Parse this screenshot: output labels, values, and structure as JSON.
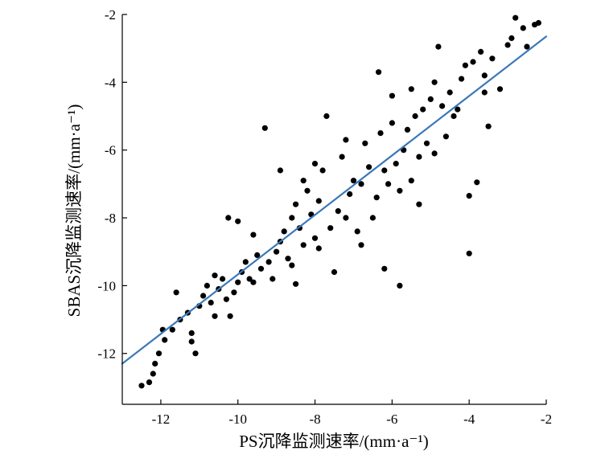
{
  "chart_data": {
    "type": "scatter",
    "xlabel": "PS沉降监测速率/(mm·a⁻¹)",
    "ylabel": "SBAS沉降监测速率/(mm·a⁻¹)",
    "xlim": [
      -13,
      -2
    ],
    "ylim": [
      -13.5,
      -2
    ],
    "xticks": [
      -12,
      -10,
      -8,
      -6,
      -4,
      -2
    ],
    "yticks": [
      -2,
      -4,
      -6,
      -8,
      -10,
      -12
    ],
    "xtick_labels": [
      "-12",
      "-10",
      "-8",
      "-6",
      "-4",
      "-2"
    ],
    "ytick_labels": [
      "-2",
      "-4",
      "-6",
      "-8",
      "-10",
      "-12"
    ],
    "grid": false,
    "legend": "none",
    "colors": {
      "points": "#000000",
      "fit_line": "#3a78b8"
    },
    "fit_line": {
      "x": [
        -13,
        -2
      ],
      "y": [
        -12.3,
        -2.65
      ]
    },
    "series": [
      {
        "points": [
          [
            -12.5,
            -12.95
          ],
          [
            -12.3,
            -12.85
          ],
          [
            -12.2,
            -12.6
          ],
          [
            -12.15,
            -12.3
          ],
          [
            -12.05,
            -12.0
          ],
          [
            -11.9,
            -11.6
          ],
          [
            -11.95,
            -11.3
          ],
          [
            -11.7,
            -11.3
          ],
          [
            -11.5,
            -11.0
          ],
          [
            -11.3,
            -10.8
          ],
          [
            -11.2,
            -11.65
          ],
          [
            -11.1,
            -12.0
          ],
          [
            -11.2,
            -11.4
          ],
          [
            -11.6,
            -10.2
          ],
          [
            -11.0,
            -10.6
          ],
          [
            -10.9,
            -10.3
          ],
          [
            -10.8,
            -10.0
          ],
          [
            -10.7,
            -10.5
          ],
          [
            -10.6,
            -10.9
          ],
          [
            -10.5,
            -10.1
          ],
          [
            -10.4,
            -9.8
          ],
          [
            -10.3,
            -10.4
          ],
          [
            -10.2,
            -10.9
          ],
          [
            -10.1,
            -10.2
          ],
          [
            -10.0,
            -9.9
          ],
          [
            -10.25,
            -8.0
          ],
          [
            -10.0,
            -8.1
          ],
          [
            -9.9,
            -9.6
          ],
          [
            -9.8,
            -9.3
          ],
          [
            -9.7,
            -9.8
          ],
          [
            -9.6,
            -8.5
          ],
          [
            -9.5,
            -9.1
          ],
          [
            -9.4,
            -9.5
          ],
          [
            -9.3,
            -5.35
          ],
          [
            -9.2,
            -9.3
          ],
          [
            -9.1,
            -9.8
          ],
          [
            -9.0,
            -9.0
          ],
          [
            -8.9,
            -8.7
          ],
          [
            -8.9,
            -6.6
          ],
          [
            -8.8,
            -8.4
          ],
          [
            -8.7,
            -9.2
          ],
          [
            -8.6,
            -8.0
          ],
          [
            -8.5,
            -9.95
          ],
          [
            -8.5,
            -7.6
          ],
          [
            -8.4,
            -8.3
          ],
          [
            -8.3,
            -8.8
          ],
          [
            -8.2,
            -7.2
          ],
          [
            -8.1,
            -7.9
          ],
          [
            -8.0,
            -8.6
          ],
          [
            -8.0,
            -6.4
          ],
          [
            -7.9,
            -7.5
          ],
          [
            -7.8,
            -6.6
          ],
          [
            -7.7,
            -5.0
          ],
          [
            -7.6,
            -8.3
          ],
          [
            -7.5,
            -9.6
          ],
          [
            -7.4,
            -7.8
          ],
          [
            -7.3,
            -6.2
          ],
          [
            -7.2,
            -8.0
          ],
          [
            -7.1,
            -7.3
          ],
          [
            -7.0,
            -6.9
          ],
          [
            -6.9,
            -8.4
          ],
          [
            -6.8,
            -7.0
          ],
          [
            -6.7,
            -5.8
          ],
          [
            -6.6,
            -6.5
          ],
          [
            -6.5,
            -8.0
          ],
          [
            -6.4,
            -7.4
          ],
          [
            -6.35,
            -3.7
          ],
          [
            -6.3,
            -5.5
          ],
          [
            -6.2,
            -9.5
          ],
          [
            -6.2,
            -6.6
          ],
          [
            -6.1,
            -7.0
          ],
          [
            -6.0,
            -5.2
          ],
          [
            -5.9,
            -6.4
          ],
          [
            -5.8,
            -10.0
          ],
          [
            -5.8,
            -7.2
          ],
          [
            -5.7,
            -6.0
          ],
          [
            -5.6,
            -5.4
          ],
          [
            -5.5,
            -6.9
          ],
          [
            -5.4,
            -5.0
          ],
          [
            -5.3,
            -6.2
          ],
          [
            -5.2,
            -4.8
          ],
          [
            -5.1,
            -5.8
          ],
          [
            -5.0,
            -4.5
          ],
          [
            -4.9,
            -4.0
          ],
          [
            -4.8,
            -2.95
          ],
          [
            -4.7,
            -4.7
          ],
          [
            -4.6,
            -5.6
          ],
          [
            -4.5,
            -4.3
          ],
          [
            -4.4,
            -5.0
          ],
          [
            -4.3,
            -4.8
          ],
          [
            -4.2,
            -3.9
          ],
          [
            -4.1,
            -3.5
          ],
          [
            -4.0,
            -7.35
          ],
          [
            -4.0,
            -9.05
          ],
          [
            -3.9,
            -3.4
          ],
          [
            -3.8,
            -6.95
          ],
          [
            -3.7,
            -3.1
          ],
          [
            -3.6,
            -4.3
          ],
          [
            -3.5,
            -5.3
          ],
          [
            -3.4,
            -3.3
          ],
          [
            -3.2,
            -4.2
          ],
          [
            -3.0,
            -2.9
          ],
          [
            -2.9,
            -2.7
          ],
          [
            -2.8,
            -2.1
          ],
          [
            -2.6,
            -2.4
          ],
          [
            -2.5,
            -2.95
          ],
          [
            -2.3,
            -2.3
          ],
          [
            -2.2,
            -2.25
          ],
          [
            -3.6,
            -3.8
          ],
          [
            -9.6,
            -9.9
          ],
          [
            -10.6,
            -9.7
          ],
          [
            -8.6,
            -9.4
          ],
          [
            -7.9,
            -8.9
          ],
          [
            -6.8,
            -8.8
          ],
          [
            -5.3,
            -7.6
          ],
          [
            -4.9,
            -6.1
          ],
          [
            -7.2,
            -5.7
          ],
          [
            -8.3,
            -6.9
          ],
          [
            -6.0,
            -4.4
          ],
          [
            -5.5,
            -4.2
          ]
        ]
      }
    ]
  }
}
